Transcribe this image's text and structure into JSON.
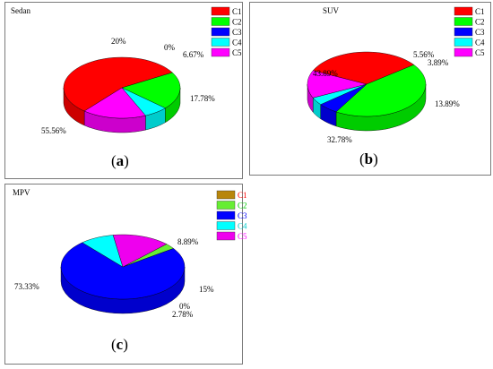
{
  "legend_colors": [
    "#ff0000",
    "#00ff00",
    "#0000ff",
    "#00ffff",
    "#ff00ff"
  ],
  "chart_data": [
    {
      "type": "pie",
      "panel_label_letter": "a",
      "title": "Sedan",
      "categories": [
        "C1",
        "C2",
        "C3",
        "C4",
        "C5"
      ],
      "values": [
        55.56,
        20,
        0,
        6.67,
        17.78
      ],
      "labels": [
        "55.56%",
        "20%",
        "0%",
        "6.67%",
        "17.78%"
      ],
      "legend_text_colors": [
        "#000000",
        "#000000",
        "#000000",
        "#000000",
        "#000000"
      ],
      "legend_swatch_colors": [
        "#ff0000",
        "#00ff00",
        "#0000ff",
        "#00ffff",
        "#ff00ff"
      ],
      "style": "3d",
      "legend_position": "top-right"
    },
    {
      "type": "pie",
      "panel_label_letter": "b",
      "title": "SUV",
      "categories": [
        "C1",
        "C2",
        "C3",
        "C4",
        "C5"
      ],
      "values": [
        32.78,
        43.89,
        5.56,
        3.89,
        13.89
      ],
      "labels": [
        "32.78%",
        "43.89%",
        "5.56%",
        "3.89%",
        "13.89%"
      ],
      "legend_text_colors": [
        "#000000",
        "#000000",
        "#000000",
        "#000000",
        "#000000"
      ],
      "legend_swatch_colors": [
        "#ff0000",
        "#00ff00",
        "#0000ff",
        "#00ffff",
        "#ff00ff"
      ],
      "style": "3d",
      "legend_position": "top-right"
    },
    {
      "type": "pie",
      "panel_label_letter": "c",
      "title": "MPV",
      "categories": [
        "C1",
        "C2",
        "C3",
        "C4",
        "C5"
      ],
      "values": [
        0,
        2.78,
        73.33,
        8.89,
        15
      ],
      "labels": [
        "0%",
        "2.78%",
        "73.33%",
        "8.89%",
        "15%"
      ],
      "label_order_note": "",
      "legend_text_colors": [
        "#ff0000",
        "#00cc00",
        "#0000ff",
        "#00cccc",
        "#ff00ff"
      ],
      "legend_swatch_colors": [
        "#b8860b",
        "#66ee33",
        "#0000ff",
        "#00ffff",
        "#ee00ee"
      ],
      "style": "3d",
      "legend_position": "top-right"
    }
  ]
}
